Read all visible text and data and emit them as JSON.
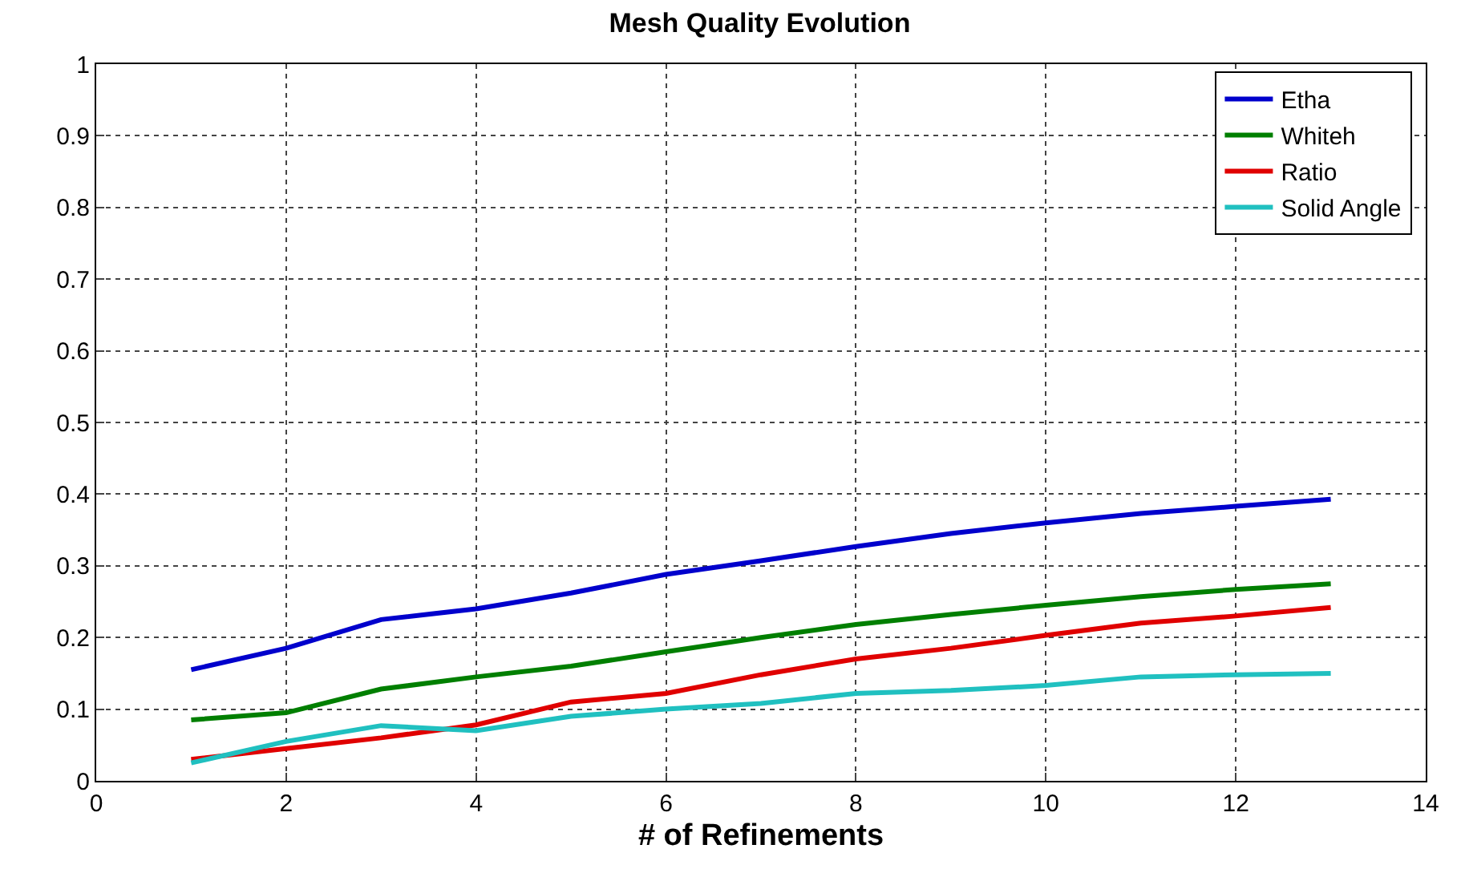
{
  "chart_data": {
    "type": "line",
    "title": "Mesh Quality Evolution",
    "xlabel": "# of Refinements",
    "x": [
      1,
      2,
      3,
      4,
      5,
      6,
      7,
      8,
      9,
      10,
      11,
      12,
      13
    ],
    "series": [
      {
        "name": "Etha",
        "color": "#0000cc",
        "values": [
          0.155,
          0.185,
          0.225,
          0.24,
          0.262,
          0.288,
          0.307,
          0.327,
          0.345,
          0.36,
          0.373,
          0.383,
          0.393
        ]
      },
      {
        "name": "Whiteh",
        "color": "#007f00",
        "values": [
          0.085,
          0.095,
          0.128,
          0.145,
          0.16,
          0.18,
          0.2,
          0.218,
          0.232,
          0.245,
          0.257,
          0.267,
          0.275
        ]
      },
      {
        "name": "Ratio",
        "color": "#e00000",
        "values": [
          0.03,
          0.045,
          0.06,
          0.078,
          0.11,
          0.122,
          0.148,
          0.17,
          0.185,
          0.203,
          0.22,
          0.23,
          0.242
        ]
      },
      {
        "name": "Solid Angle",
        "color": "#20c0c0",
        "values": [
          0.025,
          0.055,
          0.077,
          0.07,
          0.09,
          0.1,
          0.108,
          0.122,
          0.126,
          0.133,
          0.145,
          0.148,
          0.15
        ]
      }
    ],
    "xlim": [
      0,
      14
    ],
    "xticks": [
      0,
      2,
      4,
      6,
      8,
      10,
      12,
      14
    ],
    "ylim": [
      0,
      1
    ],
    "yticks": [
      0,
      0.1,
      0.2,
      0.3,
      0.4,
      0.5,
      0.6,
      0.7,
      0.8,
      0.9,
      1
    ],
    "grid": true,
    "legend": "top right",
    "marker": "none",
    "line_style": "solid"
  }
}
